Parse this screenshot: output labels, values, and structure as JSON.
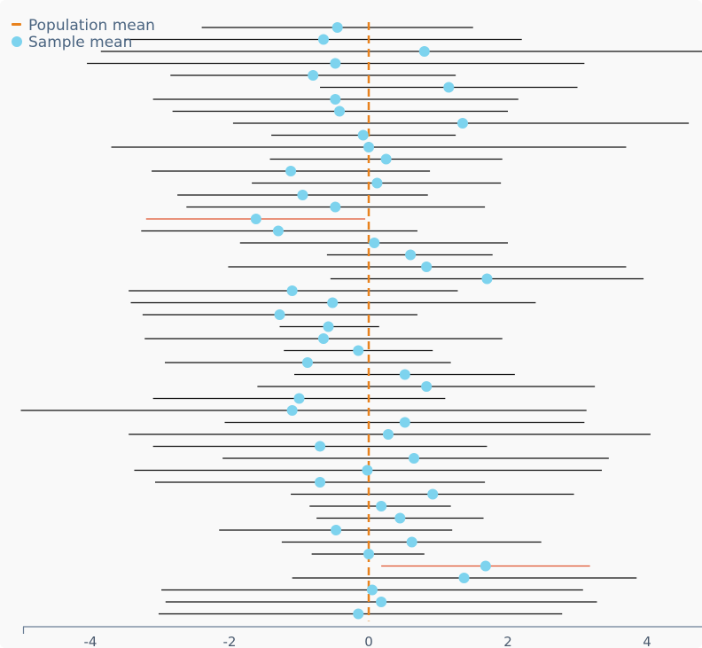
{
  "chart_data": {
    "type": "scatter",
    "title": "",
    "xlabel": "",
    "ylabel": "",
    "xlim": [
      -5.1,
      4.8
    ],
    "x_ticks": [
      -4,
      -2,
      0,
      2,
      4
    ],
    "x_tick_labels": [
      "-4",
      "-2",
      "0",
      "2",
      "4"
    ],
    "grid": false,
    "legend_position": "top-left",
    "population_mean": 0,
    "series": [
      {
        "name": "Population mean",
        "color": "#e8821e"
      },
      {
        "name": "Sample mean",
        "color": "#7dd3ee"
      }
    ],
    "intervals": [
      {
        "mean": -0.45,
        "lower": -2.4,
        "upper": 1.5,
        "covers": true
      },
      {
        "mean": -0.65,
        "lower": -3.5,
        "upper": 2.2,
        "covers": true
      },
      {
        "mean": 0.8,
        "lower": -3.85,
        "upper": 4.8,
        "covers": true
      },
      {
        "mean": -0.48,
        "lower": -4.05,
        "upper": 3.1,
        "covers": true
      },
      {
        "mean": -0.8,
        "lower": -2.85,
        "upper": 1.25,
        "covers": true
      },
      {
        "mean": 1.15,
        "lower": -0.7,
        "upper": 3.0,
        "covers": true
      },
      {
        "mean": -0.48,
        "lower": -3.1,
        "upper": 2.15,
        "covers": true
      },
      {
        "mean": -0.42,
        "lower": -2.82,
        "upper": 2.0,
        "covers": true
      },
      {
        "mean": 1.35,
        "lower": -1.95,
        "upper": 4.6,
        "covers": true
      },
      {
        "mean": -0.08,
        "lower": -1.4,
        "upper": 1.25,
        "covers": true
      },
      {
        "mean": 0.0,
        "lower": -3.7,
        "upper": 3.7,
        "covers": true
      },
      {
        "mean": 0.25,
        "lower": -1.42,
        "upper": 1.92,
        "covers": true
      },
      {
        "mean": -1.12,
        "lower": -3.12,
        "upper": 0.88,
        "covers": true
      },
      {
        "mean": 0.12,
        "lower": -1.68,
        "upper": 1.9,
        "covers": true
      },
      {
        "mean": -0.95,
        "lower": -2.75,
        "upper": 0.85,
        "covers": true
      },
      {
        "mean": -0.48,
        "lower": -2.62,
        "upper": 1.67,
        "covers": true
      },
      {
        "mean": -1.62,
        "lower": -3.2,
        "upper": -0.05,
        "covers": false
      },
      {
        "mean": -1.3,
        "lower": -3.27,
        "upper": 0.7,
        "covers": true
      },
      {
        "mean": 0.08,
        "lower": -1.85,
        "upper": 2.0,
        "covers": true
      },
      {
        "mean": 0.6,
        "lower": -0.6,
        "upper": 1.78,
        "covers": true
      },
      {
        "mean": 0.83,
        "lower": -2.02,
        "upper": 3.7,
        "covers": true
      },
      {
        "mean": 1.7,
        "lower": -0.55,
        "upper": 3.95,
        "covers": true
      },
      {
        "mean": -1.1,
        "lower": -3.45,
        "upper": 1.28,
        "covers": true
      },
      {
        "mean": -0.52,
        "lower": -3.42,
        "upper": 2.4,
        "covers": true
      },
      {
        "mean": -1.28,
        "lower": -3.25,
        "upper": 0.7,
        "covers": true
      },
      {
        "mean": -0.58,
        "lower": -1.28,
        "upper": 0.15,
        "covers": true
      },
      {
        "mean": -0.65,
        "lower": -3.22,
        "upper": 1.92,
        "covers": true
      },
      {
        "mean": -0.15,
        "lower": -1.22,
        "upper": 0.92,
        "covers": true
      },
      {
        "mean": -0.88,
        "lower": -2.93,
        "upper": 1.18,
        "covers": true
      },
      {
        "mean": 0.52,
        "lower": -1.07,
        "upper": 2.1,
        "covers": true
      },
      {
        "mean": 0.83,
        "lower": -1.6,
        "upper": 3.25,
        "covers": true
      },
      {
        "mean": -1.0,
        "lower": -3.1,
        "upper": 1.1,
        "covers": true
      },
      {
        "mean": -1.1,
        "lower": -5.0,
        "upper": 3.13,
        "covers": true
      },
      {
        "mean": 0.52,
        "lower": -2.07,
        "upper": 3.1,
        "covers": true
      },
      {
        "mean": 0.28,
        "lower": -3.45,
        "upper": 4.05,
        "covers": true
      },
      {
        "mean": -0.7,
        "lower": -3.1,
        "upper": 1.7,
        "covers": true
      },
      {
        "mean": 0.65,
        "lower": -2.1,
        "upper": 3.45,
        "covers": true
      },
      {
        "mean": -0.02,
        "lower": -3.37,
        "upper": 3.35,
        "covers": true
      },
      {
        "mean": -0.7,
        "lower": -3.07,
        "upper": 1.67,
        "covers": true
      },
      {
        "mean": 0.92,
        "lower": -1.12,
        "upper": 2.95,
        "covers": true
      },
      {
        "mean": 0.18,
        "lower": -0.85,
        "upper": 1.18,
        "covers": true
      },
      {
        "mean": 0.45,
        "lower": -0.75,
        "upper": 1.65,
        "covers": true
      },
      {
        "mean": -0.47,
        "lower": -2.15,
        "upper": 1.2,
        "covers": true
      },
      {
        "mean": 0.62,
        "lower": -1.25,
        "upper": 2.48,
        "covers": true
      },
      {
        "mean": 0.0,
        "lower": -0.82,
        "upper": 0.8,
        "covers": true
      },
      {
        "mean": 1.68,
        "lower": 0.18,
        "upper": 3.18,
        "covers": false
      },
      {
        "mean": 1.37,
        "lower": -1.1,
        "upper": 3.85,
        "covers": true
      },
      {
        "mean": 0.05,
        "lower": -2.98,
        "upper": 3.08,
        "covers": true
      },
      {
        "mean": 0.18,
        "lower": -2.92,
        "upper": 3.28,
        "covers": true
      },
      {
        "mean": -0.15,
        "lower": -3.02,
        "upper": 2.78,
        "covers": true
      }
    ],
    "colors": {
      "interval": "#111111",
      "interval_miss": "#e0552f",
      "mean_line": "#e8821e",
      "dot": "#7dd3ee",
      "axis": "#6b7f96"
    }
  }
}
